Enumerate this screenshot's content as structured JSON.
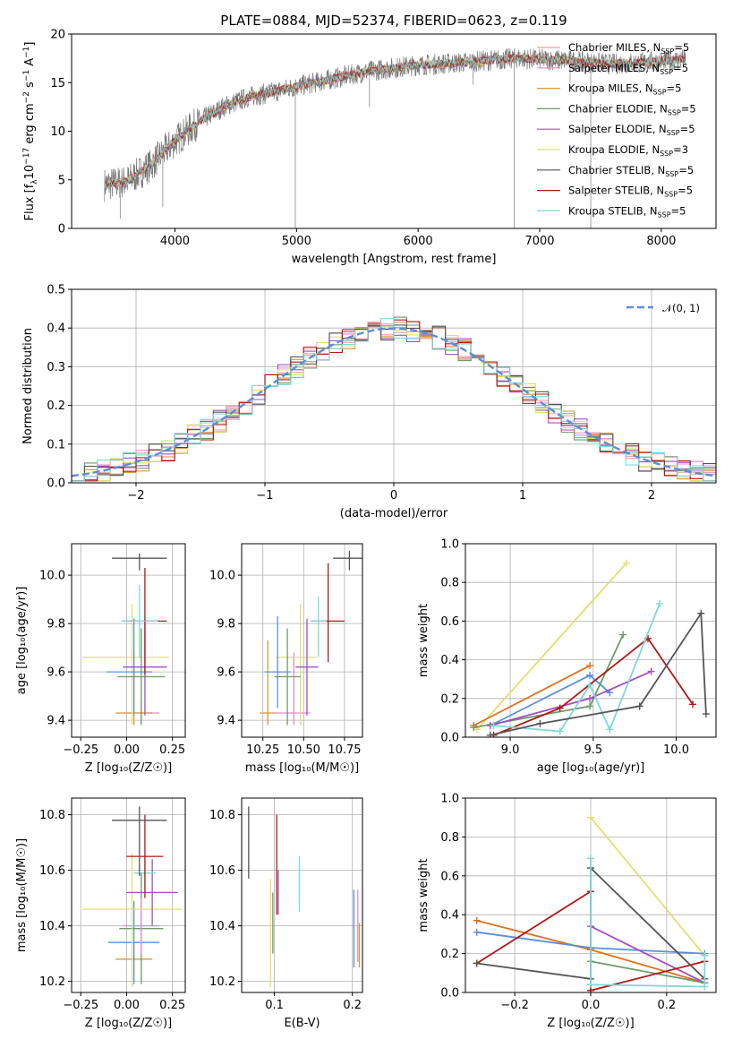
{
  "figure_title": "PLATE=0884, MJD=52374, FIBERID=0623, z=0.119",
  "model_colors": [
    "#e8a0a0",
    "#e88ad0",
    "#d89a3a",
    "#6f9a6a",
    "#a050c0",
    "#e0e070",
    "#555555",
    "#b01818",
    "#80d8d8"
  ],
  "chart_data": [
    {
      "id": "spectrum",
      "type": "line",
      "title": "PLATE=0884, MJD=52374, FIBERID=0623, z=0.119",
      "xlabel": "wavelength [Angstrom, rest frame]",
      "ylabel_parts": {
        "base": "Flux [f",
        "sub": "λ",
        "mid": "10",
        "sup": "−17",
        "rest": " erg cm",
        "sup2": "−2",
        "rest2": " s",
        "sup3": "−1",
        "rest3": " A",
        "sup4": "−1",
        "end": "]"
      },
      "xlim": [
        3150,
        8450
      ],
      "ylim": [
        0,
        20
      ],
      "xticks": [
        4000,
        5000,
        6000,
        7000,
        8000
      ],
      "yticks": [
        0,
        5,
        10,
        15,
        20
      ],
      "grid": false,
      "legend_position": "upper-right",
      "legend": [
        {
          "label": "Chabrier MILES, N",
          "sub": "SSP",
          "tail": "=5",
          "color": "#e8a0a0"
        },
        {
          "label": "Salpeter MILES, N",
          "sub": "SSP",
          "tail": "=5",
          "color": "#e88ad0"
        },
        {
          "label": "Kroupa MILES, N",
          "sub": "SSP",
          "tail": "=5",
          "color": "#d89a3a"
        },
        {
          "label": "Chabrier ELODIE, N",
          "sub": "SSP",
          "tail": "=5",
          "color": "#6f9a6a"
        },
        {
          "label": "Salpeter ELODIE, N",
          "sub": "SSP",
          "tail": "=5",
          "color": "#a050c0"
        },
        {
          "label": "Kroupa ELODIE, N",
          "sub": "SSP",
          "tail": "=3",
          "color": "#e0e070"
        },
        {
          "label": "Chabrier STELIB, N",
          "sub": "SSP",
          "tail": "=5",
          "color": "#555555"
        },
        {
          "label": "Salpeter STELIB, N",
          "sub": "SSP",
          "tail": "=5",
          "color": "#b01818"
        },
        {
          "label": "Kroupa STELIB, N",
          "sub": "SSP",
          "tail": "=5",
          "color": "#80d8d8"
        }
      ],
      "continuum_nodes": [
        [
          3420,
          4.5
        ],
        [
          3600,
          4.8
        ],
        [
          3800,
          6.5
        ],
        [
          4000,
          9.0
        ],
        [
          4200,
          11.0
        ],
        [
          4400,
          12.5
        ],
        [
          4600,
          13.5
        ],
        [
          4800,
          14.0
        ],
        [
          5000,
          14.6
        ],
        [
          5300,
          15.4
        ],
        [
          5600,
          16.2
        ],
        [
          6000,
          16.8
        ],
        [
          6400,
          17.1
        ],
        [
          6800,
          17.5
        ],
        [
          7200,
          17.3
        ],
        [
          7600,
          16.9
        ],
        [
          8000,
          17.2
        ],
        [
          8200,
          17.4
        ]
      ],
      "spikes": [
        [
          4990,
          0
        ],
        [
          6790,
          0
        ],
        [
          7420,
          0
        ],
        [
          3900,
          2.2
        ],
        [
          3550,
          1.0
        ],
        [
          5600,
          12.5
        ],
        [
          6450,
          14.8
        ],
        [
          7250,
          15.0
        ]
      ]
    },
    {
      "id": "residual_hist",
      "type": "histogram",
      "xlabel": "(data-model)/error",
      "ylabel": "Normed distribution",
      "xlim": [
        -2.5,
        2.5
      ],
      "ylim": [
        0,
        0.5
      ],
      "xticks": [
        -2,
        -1,
        0,
        1,
        2
      ],
      "xtick_labels": [
        "−2",
        "−1",
        "0",
        "1",
        "2"
      ],
      "yticks": [
        0.0,
        0.1,
        0.2,
        0.3,
        0.4,
        0.5
      ],
      "ytick_labels": [
        "0.0",
        "0.1",
        "0.2",
        "0.3",
        "0.4",
        "0.5"
      ],
      "grid": true,
      "legend_position": "upper-right",
      "legend": [
        {
          "label": "𝒩(0, 1)",
          "color": "#5b8fdc",
          "style": "dashed"
        }
      ],
      "bin_width": 0.1,
      "reference_curve": {
        "name": "𝒩(0, 1)",
        "mean": 0,
        "sigma": 1
      }
    },
    {
      "id": "age_vs_Z",
      "type": "errorbar",
      "xlabel": "Z [log₁₀(Z/Z☉)]",
      "ylabel": "age  [log₁₀(age/yr)]",
      "xlim": [
        -0.3,
        0.32
      ],
      "ylim": [
        9.33,
        10.13
      ],
      "xticks": [
        -0.25,
        0.0,
        0.25
      ],
      "xtick_labels": [
        "−0.25",
        "0.00",
        "0.25"
      ],
      "yticks": [
        9.4,
        9.6,
        9.8,
        10.0
      ],
      "ytick_labels": [
        "9.4",
        "9.6",
        "9.8",
        "10.0"
      ],
      "grid": true,
      "points": [
        {
          "x": 0.08,
          "xerr": [
            0.1,
            0.1
          ],
          "y": 9.43,
          "yerr": [
            0.05,
            0.05
          ],
          "color": "#e88ad0"
        },
        {
          "x": 0.04,
          "xerr": [
            0.1,
            0.1
          ],
          "y": 9.43,
          "yerr": [
            0.05,
            0.25
          ],
          "color": "#d89a3a"
        },
        {
          "x": 0.03,
          "xerr": [
            0.27,
            0.2
          ],
          "y": 9.66,
          "yerr": [
            0.28,
            0.22
          ],
          "color": "#e0e070"
        },
        {
          "x": 0.04,
          "xerr": [
            0.15,
            0.1
          ],
          "y": 9.6,
          "yerr": [
            0.18,
            0.22
          ],
          "color": "#5b8fdc"
        },
        {
          "x": 0.08,
          "xerr": [
            0.13,
            0.13
          ],
          "y": 9.58,
          "yerr": [
            0.2,
            0.2
          ],
          "color": "#6f9a6a"
        },
        {
          "x": 0.1,
          "xerr": [
            0.12,
            0.12
          ],
          "y": 9.62,
          "yerr": [
            0.2,
            0.2
          ],
          "color": "#a050c0"
        },
        {
          "x": 0.1,
          "xerr": [
            0.12,
            0.12
          ],
          "y": 9.81,
          "yerr": [
            0.22,
            0.22
          ],
          "color": "#b01818"
        },
        {
          "x": 0.07,
          "xerr": [
            0.1,
            0.1
          ],
          "y": 9.81,
          "yerr": [
            0.15,
            0.15
          ],
          "color": "#80d8d8"
        },
        {
          "x": 0.07,
          "xerr": [
            0.15,
            0.15
          ],
          "y": 10.07,
          "yerr": [
            0.05,
            0.02
          ],
          "color": "#555555"
        }
      ]
    },
    {
      "id": "age_vs_mass",
      "type": "errorbar",
      "xlabel": "mass [log₁₀(M/M☉)]",
      "ylabel": "",
      "xlim": [
        10.12,
        10.86
      ],
      "ylim": [
        9.33,
        10.13
      ],
      "xticks": [
        10.25,
        10.5,
        10.75
      ],
      "xtick_labels": [
        "10.25",
        "10.50",
        "10.75"
      ],
      "yticks": [
        9.4,
        9.6,
        9.8,
        10.0
      ],
      "ytick_labels": [
        "9.4",
        "9.6",
        "9.8",
        "10.0"
      ],
      "grid": true,
      "points": [
        {
          "x": 10.28,
          "xerr": [
            0.05,
            0.05
          ],
          "y": 9.43,
          "yerr": [
            0.05,
            0.3
          ],
          "color": "#d89a3a"
        },
        {
          "x": 10.44,
          "xerr": [
            0.12,
            0.1
          ],
          "y": 9.43,
          "yerr": [
            0.05,
            0.25
          ],
          "color": "#e88ad0"
        },
        {
          "x": 10.48,
          "xerr": [
            0.15,
            0.1
          ],
          "y": 9.66,
          "yerr": [
            0.28,
            0.22
          ],
          "color": "#e0e070"
        },
        {
          "x": 10.34,
          "xerr": [
            0.08,
            0.08
          ],
          "y": 9.6,
          "yerr": [
            0.15,
            0.23
          ],
          "color": "#5b8fdc"
        },
        {
          "x": 10.4,
          "xerr": [
            0.08,
            0.08
          ],
          "y": 9.58,
          "yerr": [
            0.2,
            0.2
          ],
          "color": "#6f9a6a"
        },
        {
          "x": 10.52,
          "xerr": [
            0.07,
            0.07
          ],
          "y": 9.62,
          "yerr": [
            0.2,
            0.2
          ],
          "color": "#a050c0"
        },
        {
          "x": 10.65,
          "xerr": [
            0.1,
            0.1
          ],
          "y": 9.81,
          "yerr": [
            0.17,
            0.24
          ],
          "color": "#b01818"
        },
        {
          "x": 10.59,
          "xerr": [
            0.05,
            0.05
          ],
          "y": 9.81,
          "yerr": [
            0.15,
            0.1
          ],
          "color": "#80d8d8"
        },
        {
          "x": 10.78,
          "xerr": [
            0.1,
            0.1
          ],
          "y": 10.07,
          "yerr": [
            0.05,
            0.03
          ],
          "color": "#555555"
        }
      ]
    },
    {
      "id": "weight_vs_age",
      "type": "line",
      "xlabel": "age  [log₁₀(age/yr)]",
      "ylabel": "mass weight",
      "xlim": [
        8.73,
        10.24
      ],
      "ylim": [
        0,
        1
      ],
      "xticks": [
        9.0,
        9.5,
        10.0
      ],
      "xtick_labels": [
        "9.0",
        "9.5",
        "10.0"
      ],
      "yticks": [
        0.0,
        0.2,
        0.4,
        0.6,
        0.8,
        1.0
      ],
      "ytick_labels": [
        "0.0",
        "0.2",
        "0.4",
        "0.6",
        "0.8",
        "1.0"
      ],
      "grid": true,
      "series": [
        {
          "color": "#e0e070",
          "x": [
            8.8,
            9.7
          ],
          "y": [
            0.04,
            0.9
          ]
        },
        {
          "color": "#e07020",
          "x": [
            8.78,
            9.48
          ],
          "y": [
            0.06,
            0.37
          ]
        },
        {
          "color": "#5b8fdc",
          "x": [
            8.88,
            9.48,
            9.6
          ],
          "y": [
            0.06,
            0.32,
            0.23
          ]
        },
        {
          "color": "#6f9a6a",
          "x": [
            8.78,
            9.48,
            9.68
          ],
          "y": [
            0.05,
            0.16,
            0.53
          ]
        },
        {
          "color": "#a050c0",
          "x": [
            8.88,
            9.48,
            9.85
          ],
          "y": [
            0.06,
            0.2,
            0.34
          ]
        },
        {
          "color": "#b01818",
          "x": [
            8.9,
            9.3,
            9.83,
            10.1
          ],
          "y": [
            0.01,
            0.15,
            0.51,
            0.17
          ]
        },
        {
          "color": "#80d8d8",
          "x": [
            8.9,
            9.3,
            9.48,
            9.6,
            9.9
          ],
          "y": [
            0.06,
            0.03,
            0.27,
            0.04,
            0.69
          ]
        },
        {
          "color": "#555555",
          "x": [
            8.88,
            9.18,
            9.78,
            10.15,
            10.18
          ],
          "y": [
            0.01,
            0.07,
            0.16,
            0.64,
            0.12
          ]
        }
      ]
    },
    {
      "id": "mass_vs_Z",
      "type": "errorbar",
      "xlabel": "Z [log₁₀(Z/Z☉)]",
      "ylabel": "mass [log₁₀(M/M☉)]",
      "xlim": [
        -0.3,
        0.32
      ],
      "ylim": [
        10.16,
        10.86
      ],
      "xticks": [
        -0.25,
        0.0,
        0.25
      ],
      "xtick_labels": [
        "−0.25",
        "0.00",
        "0.25"
      ],
      "yticks": [
        10.2,
        10.4,
        10.6,
        10.8
      ],
      "ytick_labels": [
        "10.2",
        "10.4",
        "10.6",
        "10.8"
      ],
      "grid": true,
      "points": [
        {
          "x": 0.04,
          "xerr": [
            0.1,
            0.1
          ],
          "y": 10.28,
          "yerr": [
            0.06,
            0.06
          ],
          "color": "#d89a3a"
        },
        {
          "x": 0.04,
          "xerr": [
            0.14,
            0.14
          ],
          "y": 10.34,
          "yerr": [
            0.15,
            0.15
          ],
          "color": "#5b8fdc"
        },
        {
          "x": 0.08,
          "xerr": [
            0.12,
            0.12
          ],
          "y": 10.39,
          "yerr": [
            0.2,
            0.2
          ],
          "color": "#6f9a6a"
        },
        {
          "x": 0.08,
          "xerr": [
            0.1,
            0.1
          ],
          "y": 10.4,
          "yerr": [
            0.1,
            0.1
          ],
          "color": "#e88ad0"
        },
        {
          "x": 0.03,
          "xerr": [
            0.27,
            0.27
          ],
          "y": 10.46,
          "yerr": [
            0.28,
            0.2
          ],
          "color": "#e0e070"
        },
        {
          "x": 0.14,
          "xerr": [
            0.14,
            0.14
          ],
          "y": 10.52,
          "yerr": [
            0.12,
            0.12
          ],
          "color": "#a050c0"
        },
        {
          "x": 0.1,
          "xerr": [
            0.06,
            0.06
          ],
          "y": 10.59,
          "yerr": [
            0.05,
            0.05
          ],
          "color": "#80d8d8"
        },
        {
          "x": 0.1,
          "xerr": [
            0.1,
            0.1
          ],
          "y": 10.65,
          "yerr": [
            0.15,
            0.15
          ],
          "color": "#b01818"
        },
        {
          "x": 0.07,
          "xerr": [
            0.15,
            0.15
          ],
          "y": 10.78,
          "yerr": [
            0.2,
            0.05
          ],
          "color": "#555555"
        }
      ]
    },
    {
      "id": "mass_vs_ebv",
      "type": "errorbar",
      "xlabel": "E(B-V)",
      "ylabel": "",
      "xlim": [
        0.058,
        0.213
      ],
      "ylim": [
        10.16,
        10.86
      ],
      "xticks": [
        0.1,
        0.2
      ],
      "xtick_labels": [
        "0.1",
        "0.2"
      ],
      "yticks": [
        10.2,
        10.4,
        10.6,
        10.8
      ],
      "ytick_labels": [
        "10.2",
        "10.4",
        "10.6",
        "10.8"
      ],
      "grid": true,
      "points": [
        {
          "x": 0.067,
          "y": 10.7,
          "yerr": [
            0.13,
            0.13
          ],
          "color": "#555555"
        },
        {
          "x": 0.095,
          "y": 10.37,
          "yerr": [
            0.19,
            0.2
          ],
          "color": "#e0e070"
        },
        {
          "x": 0.098,
          "y": 10.41,
          "yerr": [
            0.11,
            0.11
          ],
          "color": "#6f9a6a"
        },
        {
          "x": 0.103,
          "y": 10.62,
          "yerr": [
            0.18,
            0.18
          ],
          "color": "#b01818"
        },
        {
          "x": 0.105,
          "y": 10.52,
          "yerr": [
            0.08,
            0.08
          ],
          "color": "#a050c0"
        },
        {
          "x": 0.132,
          "y": 10.55,
          "yerr": [
            0.1,
            0.1
          ],
          "color": "#80d8d8"
        },
        {
          "x": 0.202,
          "y": 10.39,
          "yerr": [
            0.14,
            0.14
          ],
          "color": "#5b8fdc"
        },
        {
          "x": 0.207,
          "y": 10.4,
          "yerr": [
            0.13,
            0.13
          ],
          "color": "#e88ad0"
        },
        {
          "x": 0.209,
          "y": 10.33,
          "yerr": [
            0.08,
            0.08
          ],
          "color": "#d89a3a"
        }
      ]
    },
    {
      "id": "weight_vs_Z",
      "type": "line",
      "xlabel": "Z [log₁₀(Z/Z☉)]",
      "ylabel": "mass weight",
      "xlim": [
        -0.33,
        0.33
      ],
      "ylim": [
        0,
        1
      ],
      "xticks": [
        -0.2,
        0.0,
        0.2
      ],
      "xtick_labels": [
        "−0.2",
        "0.0",
        "0.2"
      ],
      "yticks": [
        0.0,
        0.2,
        0.4,
        0.6,
        0.8,
        1.0
      ],
      "ytick_labels": [
        "0.0",
        "0.2",
        "0.4",
        "0.6",
        "0.8",
        "1.0"
      ],
      "grid": true,
      "series": [
        {
          "color": "#e0e070",
          "x": [
            0.0,
            0.3
          ],
          "y": [
            0.9,
            0.19
          ]
        },
        {
          "color": "#e07020",
          "x": [
            -0.3,
            0.0,
            0.3
          ],
          "y": [
            0.37,
            0.22,
            0.05
          ]
        },
        {
          "color": "#5b8fdc",
          "x": [
            -0.3,
            0.0,
            0.3
          ],
          "y": [
            0.31,
            0.23,
            0.2
          ]
        },
        {
          "color": "#a050c0",
          "x": [
            0.0,
            0.3
          ],
          "y": [
            0.34,
            0.05
          ]
        },
        {
          "color": "#6f9a6a",
          "x": [
            0.0,
            0.3
          ],
          "y": [
            0.16,
            0.05
          ]
        },
        {
          "color": "#b01818",
          "x": [
            -0.3,
            0.0,
            0.0,
            0.3
          ],
          "y": [
            0.15,
            0.52,
            0.01,
            0.16
          ]
        },
        {
          "color": "#555555",
          "x": [
            -0.3,
            0.0,
            0.0,
            0.3
          ],
          "y": [
            0.15,
            0.07,
            0.64,
            0.07
          ]
        },
        {
          "color": "#80d8d8",
          "x": [
            0.0,
            0.0,
            0.3,
            0.3
          ],
          "y": [
            0.69,
            0.04,
            0.03,
            0.19
          ]
        }
      ]
    }
  ]
}
